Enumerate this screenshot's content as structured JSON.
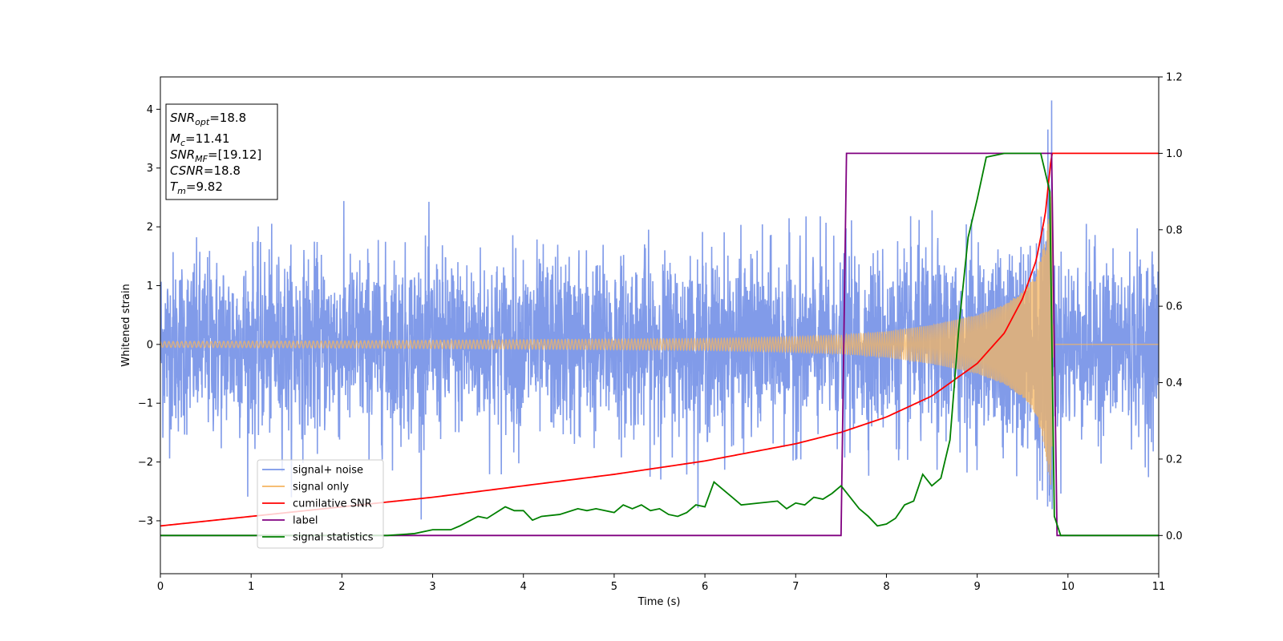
{
  "chart_data": {
    "type": "line",
    "xlabel": "Time (s)",
    "ylabel": "Whitened strain",
    "xlim": [
      0,
      11
    ],
    "ylim_left": [
      -3.9,
      4.55
    ],
    "ylim_right": [
      -0.1,
      1.2
    ],
    "x_ticks": [
      0,
      1,
      2,
      3,
      4,
      5,
      6,
      7,
      8,
      9,
      10,
      11
    ],
    "y_ticks_left": [
      -3,
      -2,
      -1,
      0,
      1,
      2,
      3,
      4
    ],
    "y_ticks_right": [
      0.0,
      0.2,
      0.4,
      0.6,
      0.8,
      1.0,
      1.2
    ],
    "x_tick_labels": [
      "0",
      "1",
      "2",
      "3",
      "4",
      "5",
      "6",
      "7",
      "8",
      "9",
      "10",
      "11"
    ],
    "y_tick_labels_left": [
      "−3",
      "−2",
      "−1",
      "0",
      "1",
      "2",
      "3",
      "4"
    ],
    "y_tick_labels_right": [
      "0.0",
      "0.2",
      "0.4",
      "0.6",
      "0.8",
      "1.0",
      "1.2"
    ],
    "legend_placement": "lower-left",
    "grid": false,
    "info_box": {
      "lines": [
        {
          "var": "SNR",
          "sub": "opt",
          "value": "=18.8"
        },
        {
          "var": "M",
          "sub": "c",
          "value": "=11.41"
        },
        {
          "var": "SNR",
          "sub": "MF",
          "value": "=[19.12]"
        },
        {
          "var": "CSNR",
          "sub": "",
          "value": "=18.8"
        },
        {
          "var": "T",
          "sub": "m",
          "value": "=9.82"
        }
      ]
    },
    "series": [
      {
        "name": "signal+ noise",
        "axis": "left",
        "color": "#7a96e8",
        "note_amplitude_std": 0.75,
        "peak": {
          "x": 9.82,
          "y": 4.15
        }
      },
      {
        "name": "signal only",
        "axis": "left",
        "color": "#f5b560",
        "envelope": [
          [
            0,
            0.05
          ],
          [
            2,
            0.06
          ],
          [
            4,
            0.08
          ],
          [
            6,
            0.1
          ],
          [
            7,
            0.13
          ],
          [
            7.5,
            0.16
          ],
          [
            8,
            0.22
          ],
          [
            8.5,
            0.33
          ],
          [
            9,
            0.5
          ],
          [
            9.3,
            0.68
          ],
          [
            9.5,
            0.9
          ],
          [
            9.65,
            1.2
          ],
          [
            9.75,
            1.8
          ],
          [
            9.82,
            2.6
          ],
          [
            9.84,
            0
          ]
        ]
      },
      {
        "name": "cumilative SNR",
        "axis": "right",
        "color": "#ff0000",
        "points": [
          [
            0,
            0.025
          ],
          [
            1,
            0.05
          ],
          [
            2,
            0.075
          ],
          [
            3,
            0.1
          ],
          [
            4,
            0.13
          ],
          [
            5,
            0.16
          ],
          [
            6,
            0.195
          ],
          [
            7,
            0.24
          ],
          [
            7.5,
            0.27
          ],
          [
            8,
            0.31
          ],
          [
            8.5,
            0.365
          ],
          [
            9,
            0.45
          ],
          [
            9.3,
            0.53
          ],
          [
            9.5,
            0.62
          ],
          [
            9.65,
            0.72
          ],
          [
            9.75,
            0.84
          ],
          [
            9.82,
            1.0
          ],
          [
            11,
            1.0
          ]
        ]
      },
      {
        "name": "label",
        "axis": "right",
        "color": "#800080",
        "points": [
          [
            0,
            0.0
          ],
          [
            7.5,
            0.0
          ],
          [
            7.56,
            1.0
          ],
          [
            9.82,
            1.0
          ],
          [
            9.88,
            0.0
          ],
          [
            11,
            0.0
          ]
        ]
      },
      {
        "name": "signal statistics",
        "axis": "right",
        "color": "#008000",
        "points": [
          [
            0,
            0.0
          ],
          [
            2.5,
            0.0
          ],
          [
            2.8,
            0.005
          ],
          [
            3.0,
            0.015
          ],
          [
            3.2,
            0.015
          ],
          [
            3.3,
            0.025
          ],
          [
            3.5,
            0.05
          ],
          [
            3.6,
            0.045
          ],
          [
            3.8,
            0.075
          ],
          [
            3.9,
            0.065
          ],
          [
            4.0,
            0.065
          ],
          [
            4.1,
            0.04
          ],
          [
            4.2,
            0.05
          ],
          [
            4.4,
            0.055
          ],
          [
            4.6,
            0.07
          ],
          [
            4.7,
            0.065
          ],
          [
            4.8,
            0.07
          ],
          [
            5.0,
            0.06
          ],
          [
            5.1,
            0.08
          ],
          [
            5.2,
            0.07
          ],
          [
            5.3,
            0.08
          ],
          [
            5.4,
            0.065
          ],
          [
            5.5,
            0.07
          ],
          [
            5.6,
            0.055
          ],
          [
            5.7,
            0.05
          ],
          [
            5.8,
            0.06
          ],
          [
            5.9,
            0.08
          ],
          [
            6.0,
            0.075
          ],
          [
            6.1,
            0.14
          ],
          [
            6.2,
            0.12
          ],
          [
            6.3,
            0.1
          ],
          [
            6.4,
            0.08
          ],
          [
            6.6,
            0.085
          ],
          [
            6.8,
            0.09
          ],
          [
            6.9,
            0.07
          ],
          [
            7.0,
            0.085
          ],
          [
            7.1,
            0.08
          ],
          [
            7.2,
            0.1
          ],
          [
            7.3,
            0.095
          ],
          [
            7.4,
            0.11
          ],
          [
            7.5,
            0.13
          ],
          [
            7.6,
            0.1
          ],
          [
            7.7,
            0.07
          ],
          [
            7.8,
            0.05
          ],
          [
            7.9,
            0.025
          ],
          [
            8.0,
            0.03
          ],
          [
            8.1,
            0.045
          ],
          [
            8.2,
            0.08
          ],
          [
            8.3,
            0.09
          ],
          [
            8.4,
            0.16
          ],
          [
            8.5,
            0.13
          ],
          [
            8.6,
            0.15
          ],
          [
            8.7,
            0.25
          ],
          [
            8.8,
            0.55
          ],
          [
            8.9,
            0.78
          ],
          [
            9.0,
            0.88
          ],
          [
            9.1,
            0.99
          ],
          [
            9.3,
            1.0
          ],
          [
            9.5,
            1.0
          ],
          [
            9.7,
            1.0
          ],
          [
            9.8,
            0.9
          ],
          [
            9.85,
            0.05
          ],
          [
            9.92,
            0.0
          ],
          [
            11,
            0.0
          ]
        ]
      }
    ]
  }
}
